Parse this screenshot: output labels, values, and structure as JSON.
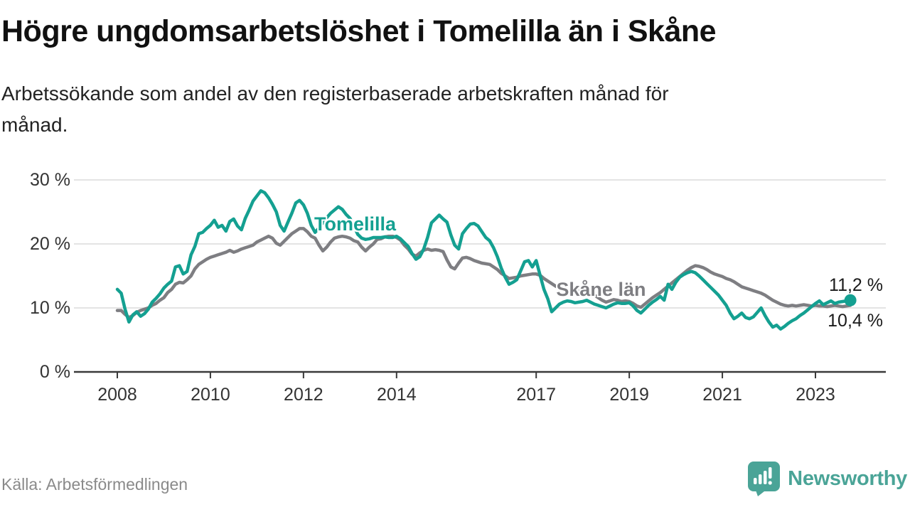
{
  "page": {
    "title": "Högre ungdomsarbetslöshet i Tomelilla än i Skåne",
    "subtitle_lines": [
      "Arbetssökande som andel av den registerbaserade arbetskraften månad för",
      "månad."
    ],
    "source": "Källa: Arbetsförmedlingen"
  },
  "logo": {
    "name": "Newsworthy",
    "mark_icon": "bar-chart-speech-bubble-icon",
    "color": "#4AA497"
  },
  "colors": {
    "tomelilla_line": "#14A091",
    "skane_line": "#7E7E82",
    "grid": "#DCDCDC",
    "axis": "#3A3A3A",
    "tick_text": "#333333"
  },
  "chart_data": {
    "type": "line",
    "title": "Högre ungdomsarbetslöshet i Tomelilla än i Skåne",
    "subtitle": "Arbetssökande som andel av den registerbaserade arbetskraften månad för månad.",
    "unit": "%",
    "frequency": "monthly",
    "x_start_year": 2008,
    "x_end_year": 2023,
    "x_end_month": 10,
    "ylim": [
      0,
      30
    ],
    "y_ticks": [
      0,
      10,
      20,
      30
    ],
    "y_tick_labels": [
      "0 %",
      "10 %",
      "20 %",
      "30 %"
    ],
    "x_ticks": [
      2008,
      2010,
      2012,
      2014,
      2017,
      2019,
      2021,
      2023
    ],
    "x_tick_labels": [
      "2008",
      "2010",
      "2012",
      "2014",
      "2017",
      "2019",
      "2021",
      "2023"
    ],
    "grid": "horizontal",
    "legend": "inline-labels",
    "series": [
      {
        "name": "Tomelilla",
        "color": "#14A091",
        "label": {
          "text": "Tomelilla",
          "x": 2013.3,
          "y": 23.0
        },
        "end_label": "11,2 %",
        "end_value": 11.2,
        "end_label_y": 13.4,
        "end_dot": true,
        "values": [
          12.9,
          12.3,
          9.8,
          7.8,
          8.9,
          9.4,
          8.7,
          9.1,
          9.8,
          10.9,
          11.5,
          12.2,
          13.1,
          13.7,
          14.2,
          16.4,
          16.6,
          15.3,
          15.7,
          18.3,
          19.6,
          21.6,
          21.8,
          22.4,
          22.9,
          23.7,
          22.6,
          22.9,
          22.0,
          23.5,
          23.9,
          22.8,
          22.2,
          24.0,
          25.3,
          26.7,
          27.5,
          28.3,
          28.0,
          27.2,
          26.2,
          25.0,
          22.9,
          22.0,
          23.4,
          24.8,
          26.4,
          26.8,
          26.1,
          24.8,
          22.9,
          21.8,
          22.5,
          23.3,
          24.1,
          24.8,
          25.3,
          25.8,
          25.4,
          24.6,
          24.0,
          22.8,
          21.5,
          20.9,
          20.7,
          20.8,
          21.0,
          21.0,
          21.0,
          21.1,
          21.0,
          21.0,
          21.2,
          20.8,
          20.2,
          19.6,
          18.5,
          17.6,
          18.0,
          19.2,
          21.0,
          23.3,
          23.9,
          24.5,
          23.9,
          23.4,
          21.4,
          19.8,
          19.2,
          21.6,
          22.4,
          23.1,
          23.2,
          22.8,
          21.9,
          21.0,
          20.5,
          19.4,
          18.0,
          16.2,
          14.8,
          13.7,
          14.0,
          14.4,
          15.8,
          17.2,
          17.4,
          16.4,
          17.4,
          15.1,
          12.9,
          11.4,
          9.4,
          10.0,
          10.6,
          10.9,
          11.1,
          11.0,
          10.8,
          10.9,
          11.0,
          11.2,
          10.9,
          10.6,
          10.4,
          10.2,
          10.0,
          10.3,
          10.6,
          10.8,
          10.7,
          10.7,
          10.8,
          10.3,
          9.6,
          9.2,
          9.8,
          10.4,
          10.9,
          11.3,
          11.8,
          11.2,
          13.7,
          12.9,
          14.0,
          14.8,
          15.2,
          15.5,
          15.7,
          15.5,
          15.0,
          14.4,
          13.8,
          13.2,
          12.6,
          12.0,
          11.2,
          10.4,
          9.2,
          8.3,
          8.7,
          9.2,
          8.5,
          8.3,
          8.6,
          9.3,
          10.0,
          8.8,
          7.8,
          7.0,
          7.3,
          6.7,
          7.1,
          7.6,
          8.0,
          8.3,
          8.8,
          9.2,
          9.7,
          10.2,
          10.7,
          11.1,
          10.5,
          10.8,
          11.1,
          10.7,
          10.9,
          11.0,
          11.1,
          11.2
        ]
      },
      {
        "name": "Skåne län",
        "color": "#7E7E82",
        "label": {
          "text": "Skåne län",
          "x": 2018.5,
          "y": 12.8
        },
        "end_label": "10,4 %",
        "end_value": 10.4,
        "end_label_y": 7.9,
        "end_dot": false,
        "values": [
          9.6,
          9.6,
          9.0,
          8.5,
          8.8,
          9.3,
          9.6,
          9.8,
          10.0,
          10.4,
          10.7,
          11.2,
          11.6,
          12.4,
          12.9,
          13.7,
          14.0,
          13.9,
          14.4,
          15.0,
          16.1,
          16.8,
          17.2,
          17.6,
          17.9,
          18.1,
          18.3,
          18.5,
          18.7,
          19.0,
          18.7,
          18.9,
          19.2,
          19.4,
          19.6,
          19.8,
          20.3,
          20.6,
          20.9,
          21.2,
          20.9,
          20.1,
          19.8,
          20.4,
          21.0,
          21.6,
          22.0,
          22.4,
          22.4,
          21.9,
          21.2,
          20.9,
          19.8,
          18.9,
          19.5,
          20.3,
          20.9,
          21.1,
          21.2,
          21.1,
          20.9,
          20.5,
          20.3,
          19.5,
          18.9,
          19.5,
          20.0,
          20.7,
          20.8,
          21.1,
          21.2,
          21.2,
          21.0,
          20.6,
          19.8,
          19.2,
          18.4,
          18.1,
          18.6,
          19.0,
          19.2,
          19.0,
          19.1,
          19.0,
          18.8,
          17.5,
          16.4,
          16.1,
          17.0,
          17.8,
          17.9,
          17.7,
          17.4,
          17.2,
          17.0,
          16.9,
          16.8,
          16.4,
          16.0,
          15.4,
          15.0,
          14.6,
          14.7,
          14.8,
          15.0,
          15.1,
          15.2,
          15.3,
          15.3,
          15.1,
          14.6,
          14.2,
          13.8,
          13.4,
          13.1,
          12.9,
          12.8,
          12.7,
          12.7,
          12.6,
          12.6,
          12.4,
          12.2,
          12.0,
          11.6,
          11.2,
          10.9,
          11.1,
          11.3,
          11.2,
          11.0,
          11.1,
          11.0,
          10.7,
          10.3,
          10.1,
          10.6,
          11.1,
          11.6,
          12.0,
          12.4,
          12.9,
          13.4,
          13.9,
          14.4,
          14.9,
          15.4,
          15.9,
          16.3,
          16.6,
          16.5,
          16.3,
          16.0,
          15.6,
          15.3,
          15.1,
          14.9,
          14.6,
          14.4,
          14.1,
          13.7,
          13.3,
          13.1,
          12.9,
          12.7,
          12.5,
          12.3,
          12.0,
          11.6,
          11.2,
          10.9,
          10.6,
          10.4,
          10.3,
          10.4,
          10.3,
          10.4,
          10.5,
          10.4,
          10.3,
          10.4,
          10.3,
          10.3,
          10.2,
          10.3,
          10.4,
          10.3,
          10.2,
          10.3,
          10.4
        ]
      }
    ]
  }
}
